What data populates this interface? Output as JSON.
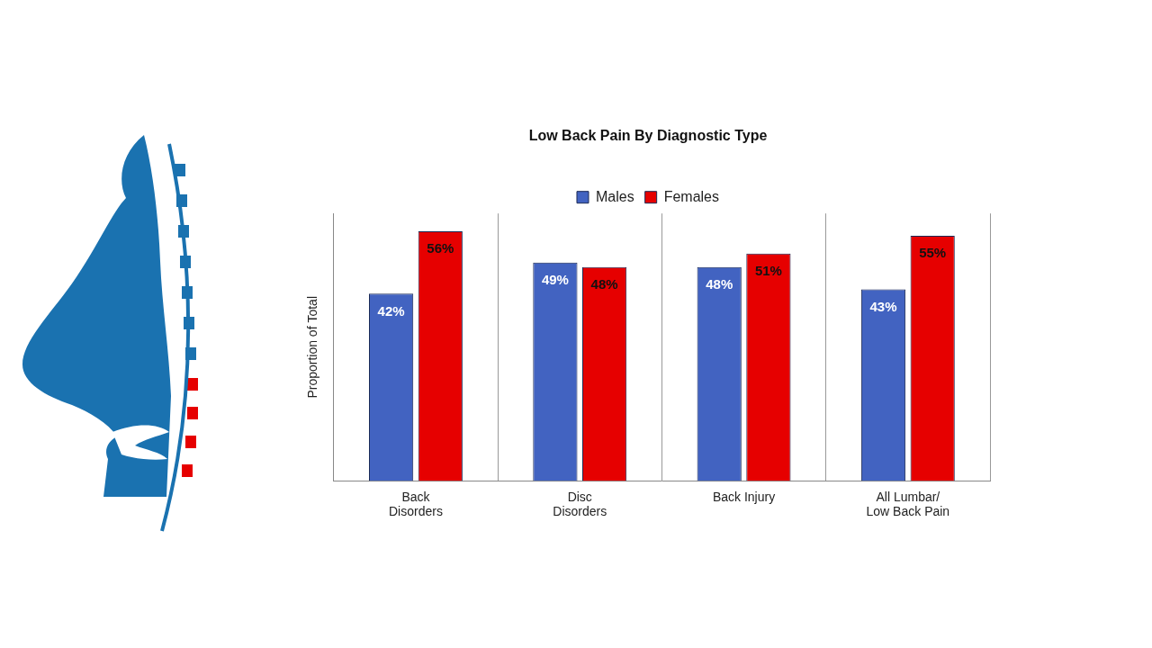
{
  "chart_data": {
    "type": "bar",
    "title": "Low Back Pain By Diagnostic Type",
    "y_label": "Proportion of Total",
    "categories": [
      "Back Disorders",
      "Disc Disorders",
      "Back Injury",
      "All Lumbar/ Low Back Pain"
    ],
    "series": [
      {
        "name": "Males",
        "color": "#4263c1",
        "values": [
          42,
          49,
          48,
          43
        ],
        "value_labels": [
          "42%",
          "49%",
          "48%",
          "43%"
        ]
      },
      {
        "name": "Females",
        "color": "#e60000",
        "values": [
          56,
          48,
          51,
          55
        ],
        "value_labels": [
          "56%",
          "48%",
          "51%",
          "55%"
        ]
      }
    ],
    "ylim": [
      0,
      60
    ],
    "grid": "x",
    "legend": "top",
    "data_labels": true,
    "tick_labels": "x"
  }
}
